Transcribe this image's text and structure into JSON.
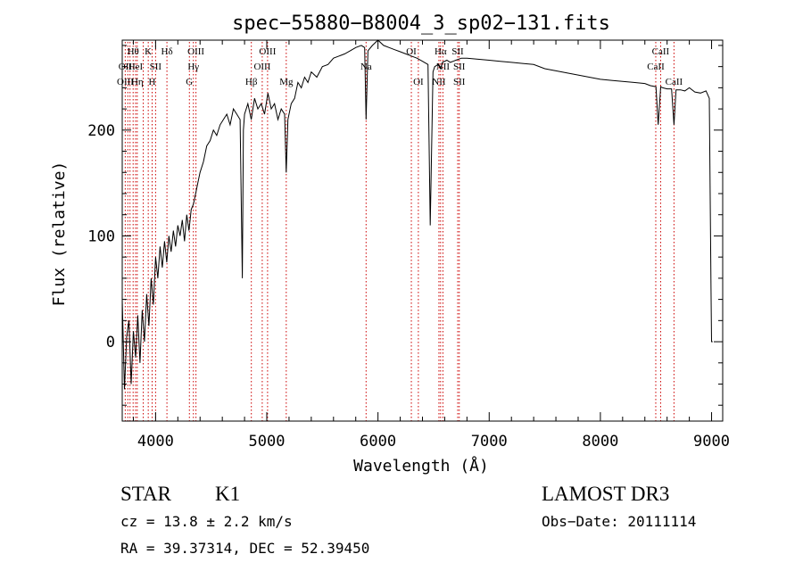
{
  "chart_data": {
    "type": "line",
    "title": "spec−55880−B8004_3_sp02−131.fits",
    "xlabel": "Wavelength (Å)",
    "ylabel": "Flux (relative)",
    "xlim": [
      3700,
      9100
    ],
    "ylim": [
      -75,
      285
    ],
    "xticks": [
      4000,
      5000,
      6000,
      7000,
      8000,
      9000
    ],
    "yticks": [
      0,
      100,
      200
    ],
    "grid": false,
    "legend": "none",
    "line_color": "#000000",
    "marker_color": "#cc0000",
    "series": [
      {
        "x": [
          3700,
          3720,
          3740,
          3760,
          3780,
          3800,
          3820,
          3840,
          3860,
          3880,
          3900,
          3920,
          3940,
          3960,
          3980,
          4000,
          4020,
          4040,
          4060,
          4080,
          4100,
          4120,
          4140,
          4160,
          4180,
          4200,
          4220,
          4240,
          4260,
          4280,
          4300,
          4320,
          4340,
          4360,
          4380,
          4400,
          4430,
          4460,
          4490,
          4520,
          4550,
          4580,
          4610,
          4640,
          4670,
          4700,
          4730,
          4760,
          4780,
          4790,
          4800,
          4830,
          4860,
          4890,
          4920,
          4950,
          4980,
          5010,
          5040,
          5070,
          5100,
          5130,
          5160,
          5175,
          5190,
          5220,
          5250,
          5280,
          5310,
          5340,
          5370,
          5400,
          5450,
          5500,
          5550,
          5600,
          5650,
          5700,
          5750,
          5800,
          5850,
          5880,
          5893,
          5910,
          5950,
          6000,
          6050,
          6100,
          6150,
          6200,
          6250,
          6300,
          6350,
          6400,
          6450,
          6470,
          6495,
          6510,
          6540,
          6563,
          6580,
          6620,
          6650,
          6700,
          6750,
          6800,
          6900,
          7000,
          7100,
          7200,
          7300,
          7400,
          7500,
          7600,
          7700,
          7800,
          7900,
          8000,
          8100,
          8200,
          8300,
          8400,
          8450,
          8500,
          8520,
          8542,
          8560,
          8600,
          8640,
          8662,
          8680,
          8720,
          8760,
          8800,
          8850,
          8900,
          8950,
          8980,
          8995,
          9000,
          9010
        ],
        "y": [
          40,
          -45,
          5,
          20,
          -40,
          10,
          -15,
          25,
          -20,
          30,
          0,
          45,
          15,
          60,
          35,
          80,
          60,
          90,
          70,
          95,
          75,
          100,
          85,
          105,
          90,
          110,
          100,
          115,
          95,
          120,
          105,
          125,
          130,
          140,
          150,
          160,
          170,
          185,
          190,
          200,
          195,
          205,
          210,
          215,
          205,
          220,
          215,
          210,
          60,
          200,
          215,
          225,
          210,
          230,
          220,
          225,
          215,
          235,
          220,
          225,
          210,
          220,
          215,
          160,
          210,
          225,
          230,
          245,
          240,
          250,
          245,
          255,
          250,
          260,
          262,
          268,
          270,
          272,
          275,
          278,
          280,
          278,
          210,
          275,
          280,
          285,
          280,
          278,
          276,
          274,
          272,
          270,
          268,
          265,
          262,
          110,
          255,
          260,
          262,
          258,
          264,
          266,
          264,
          266,
          268,
          268,
          267,
          266,
          265,
          264,
          263,
          262,
          258,
          256,
          254,
          252,
          250,
          248,
          247,
          246,
          245,
          244,
          242,
          241,
          205,
          241,
          240,
          239,
          239,
          205,
          238,
          238,
          237,
          240,
          236,
          235,
          237,
          230,
          50,
          0,
          0
        ]
      }
    ],
    "annotations": [
      {
        "label": "Hθ",
        "x": 3798,
        "row": 0
      },
      {
        "label": "OII",
        "x": 3727,
        "row": 1
      },
      {
        "label": "OIII",
        "x": 3728,
        "row": 2
      },
      {
        "label": "HeI",
        "x": 3820,
        "row": 1
      },
      {
        "label": "Hη",
        "x": 3835,
        "row": 2
      },
      {
        "label": "K",
        "x": 3934,
        "row": 0
      },
      {
        "label": "SII",
        "x": 4000,
        "row": 1
      },
      {
        "label": "H",
        "x": 3969,
        "row": 2
      },
      {
        "label": "Hδ",
        "x": 4102,
        "row": 0
      },
      {
        "label": "OIII",
        "x": 4363,
        "row": 0
      },
      {
        "label": "Hγ",
        "x": 4340,
        "row": 1
      },
      {
        "label": "G",
        "x": 4304,
        "row": 2
      },
      {
        "label": "Hβ",
        "x": 4861,
        "row": 2
      },
      {
        "label": "OIII",
        "x": 5007,
        "row": 0
      },
      {
        "label": "OIII",
        "x": 4959,
        "row": 1
      },
      {
        "label": "Mg",
        "x": 5175,
        "row": 2
      },
      {
        "label": "Na",
        "x": 5893,
        "row": 1
      },
      {
        "label": "OI",
        "x": 6300,
        "row": 0
      },
      {
        "label": "OI",
        "x": 6363,
        "row": 2
      },
      {
        "label": "Hα",
        "x": 6563,
        "row": 0
      },
      {
        "label": "NII",
        "x": 6584,
        "row": 1
      },
      {
        "label": "NII",
        "x": 6548,
        "row": 2
      },
      {
        "label": "SII",
        "x": 6717,
        "row": 0
      },
      {
        "label": "SII",
        "x": 6731,
        "row": 1
      },
      {
        "label": "SII",
        "x": 6731,
        "row": 2
      },
      {
        "label": "CaII",
        "x": 8542,
        "row": 0
      },
      {
        "label": "CaII",
        "x": 8498,
        "row": 1
      },
      {
        "label": "CaII",
        "x": 8662,
        "row": 2
      }
    ],
    "marker_lines": [
      3727,
      3750,
      3770,
      3798,
      3820,
      3835,
      3889,
      3934,
      3969,
      4000,
      4102,
      4304,
      4340,
      4363,
      4861,
      4959,
      5007,
      5175,
      5893,
      6300,
      6363,
      6548,
      6563,
      6584,
      6717,
      6731,
      8498,
      8542,
      8662
    ]
  },
  "info": {
    "object_class": "STAR",
    "subclass": "K1",
    "survey": "LAMOST DR3",
    "cz": "cz = 13.8 ± 2.2 km/s",
    "obs_date": "Obs−Date: 20111114",
    "coords": "RA =  39.37314, DEC =  52.39450"
  }
}
